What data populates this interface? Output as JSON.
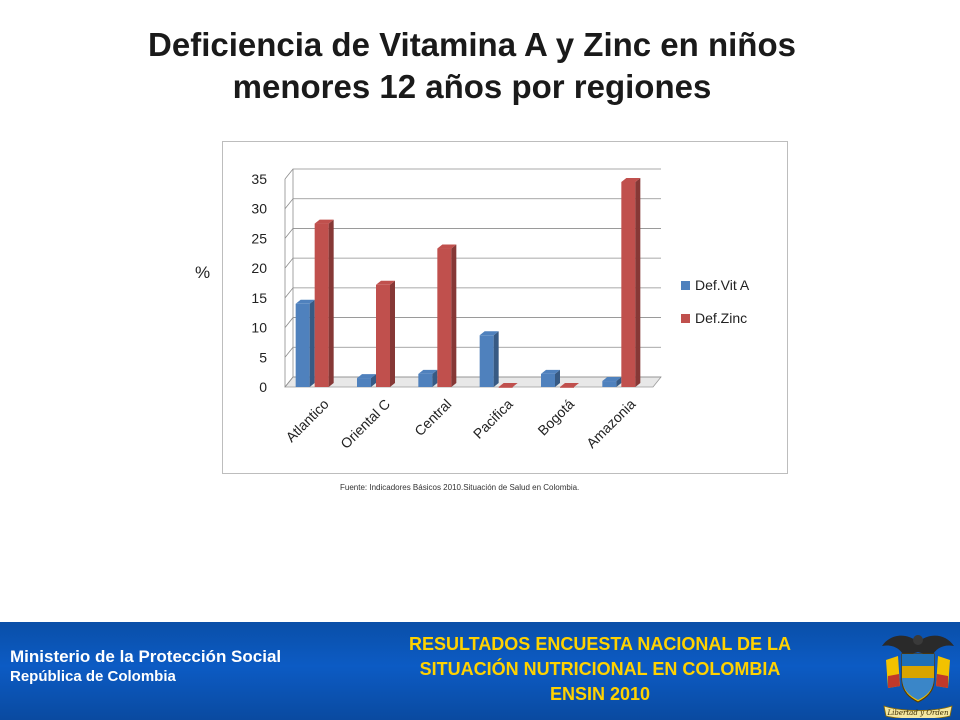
{
  "title_line1": "Deficiencia de Vitamina A y Zinc en niños",
  "title_line2": "menores 12 años por regiones",
  "y_unit_label": "%",
  "source_note": "Fuente: Indicadores Básicos 2010.Situación de Salud en Colombia.",
  "footer": {
    "ministry": "Ministerio de la Protección Social",
    "country": "República de Colombia",
    "survey_line1": "RESULTADOS ENCUESTA NACIONAL DE LA",
    "survey_line2": "SITUACIÓN NUTRICIONAL EN COLOMBIA",
    "survey_line3": "ENSIN  2010",
    "crest_motto": "Libertad y Orden"
  },
  "chart_data": {
    "type": "bar",
    "categories": [
      "Atlantico",
      "Oriental C",
      "Central",
      "Pacifica",
      "Bogotá",
      "Amazonia"
    ],
    "series": [
      {
        "name": "Def.Vit A",
        "values": [
          14,
          1.5,
          2.2,
          8.7,
          2.2,
          1
        ],
        "color": "#4f81bd"
      },
      {
        "name": "Def.Zinc",
        "values": [
          27.5,
          17.2,
          23.3,
          0,
          0,
          34.5
        ],
        "color": "#c0504d"
      }
    ],
    "ylim": [
      0,
      35
    ],
    "yticks": [
      0,
      5,
      10,
      15,
      20,
      25,
      30,
      35
    ],
    "grid": true,
    "legend": "right",
    "style": "3d-clustered-column"
  }
}
